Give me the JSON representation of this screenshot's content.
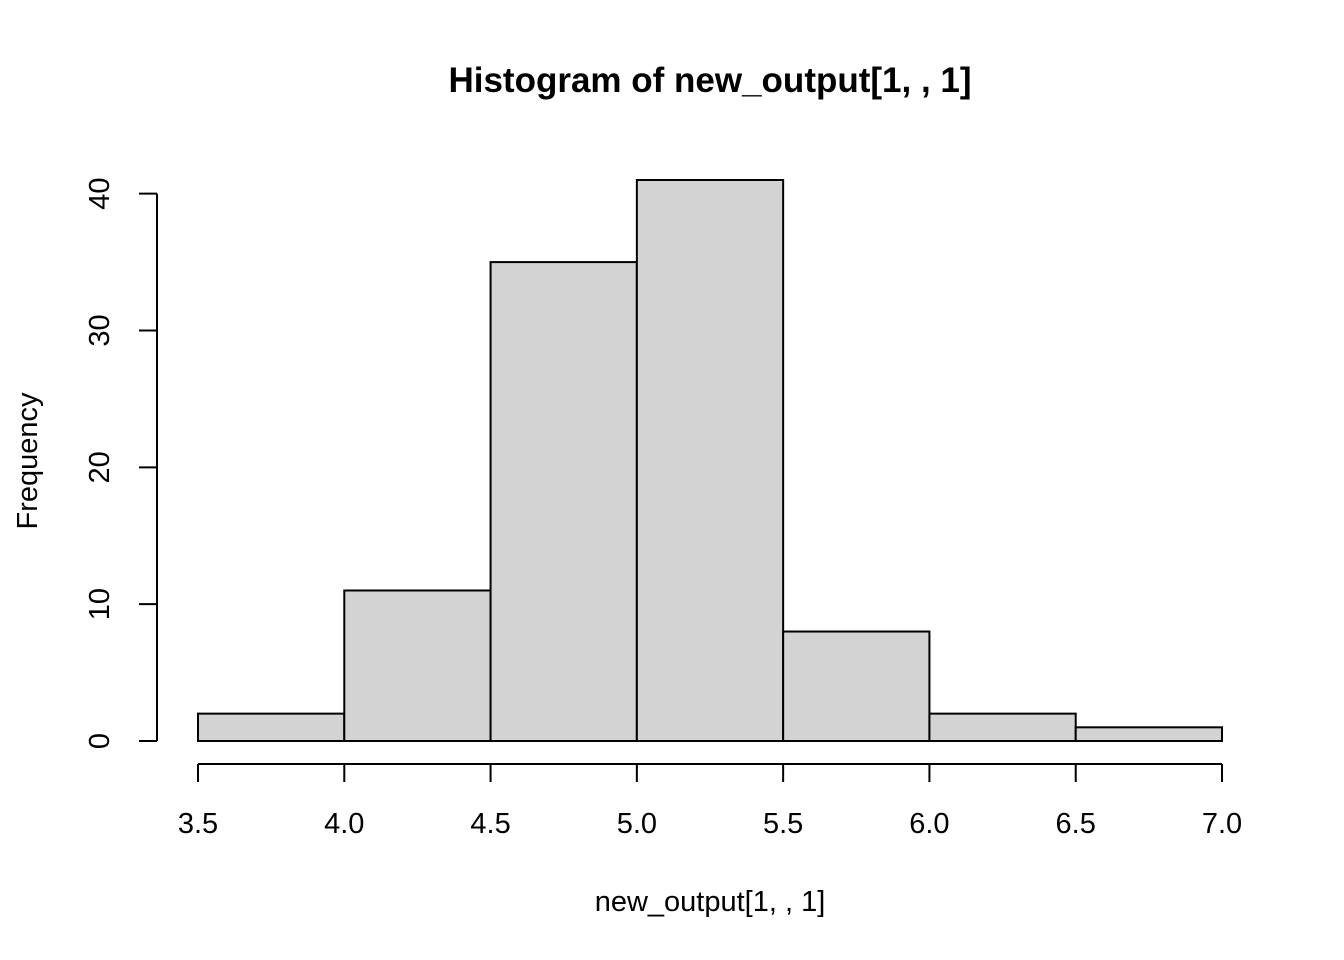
{
  "chart_data": {
    "type": "bar",
    "subtype": "histogram",
    "title": "Histogram of new_output[1, , 1]",
    "xlabel": "new_output[1, , 1]",
    "ylabel": "Frequency",
    "bins": [
      {
        "start": 3.5,
        "end": 4.0,
        "count": 2
      },
      {
        "start": 4.0,
        "end": 4.5,
        "count": 11
      },
      {
        "start": 4.5,
        "end": 5.0,
        "count": 35
      },
      {
        "start": 5.0,
        "end": 5.5,
        "count": 41
      },
      {
        "start": 5.5,
        "end": 6.0,
        "count": 8
      },
      {
        "start": 6.0,
        "end": 6.5,
        "count": 2
      },
      {
        "start": 6.5,
        "end": 7.0,
        "count": 1
      }
    ],
    "xlim": [
      3.5,
      7.0
    ],
    "ylim": [
      0,
      41
    ],
    "x_ticks": [
      {
        "value": 3.5,
        "label": "3.5"
      },
      {
        "value": 4.0,
        "label": "4.0"
      },
      {
        "value": 4.5,
        "label": "4.5"
      },
      {
        "value": 5.0,
        "label": "5.0"
      },
      {
        "value": 5.5,
        "label": "5.5"
      },
      {
        "value": 6.0,
        "label": "6.0"
      },
      {
        "value": 6.5,
        "label": "6.5"
      },
      {
        "value": 7.0,
        "label": "7.0"
      }
    ],
    "y_ticks": [
      {
        "value": 0,
        "label": "0"
      },
      {
        "value": 10,
        "label": "10"
      },
      {
        "value": 20,
        "label": "20"
      },
      {
        "value": 30,
        "label": "30"
      },
      {
        "value": 40,
        "label": "40"
      }
    ],
    "grid": false,
    "legend": "none",
    "colors": {
      "bar_fill": "#d3d3d3",
      "bar_stroke": "#000000",
      "axis": "#000000",
      "background": "#ffffff"
    }
  }
}
